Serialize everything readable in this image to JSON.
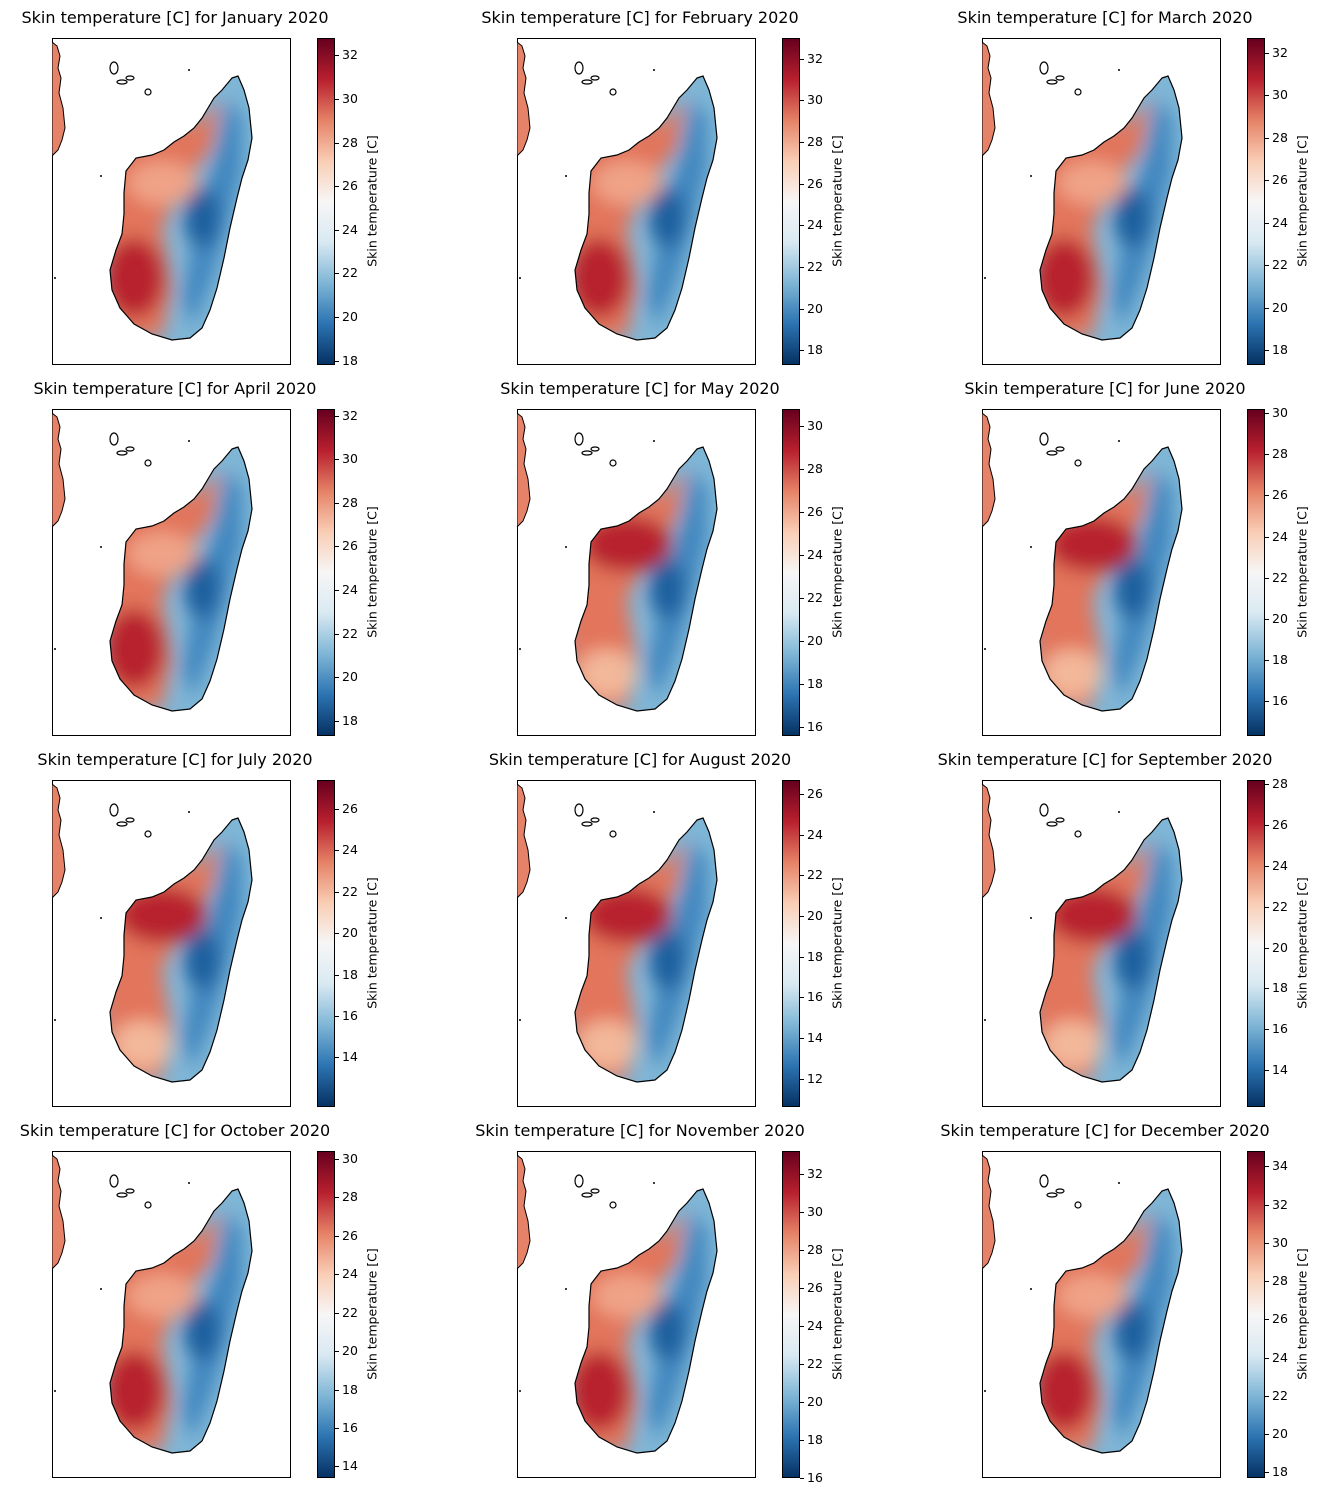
{
  "colormap": {
    "low": "#053061",
    "mid": "#f7f7f7",
    "high": "#67001f"
  },
  "colorbar_label": "Skin temperature [C]",
  "panels": [
    {
      "title": "Skin temperature [C] for January 2020",
      "ticks": [
        "18",
        "20",
        "22",
        "24",
        "26",
        "28",
        "30",
        "32"
      ],
      "vmin": 17.8,
      "vmax": 32.8,
      "hot": "w"
    },
    {
      "title": "Skin temperature [C] for February 2020",
      "ticks": [
        "18",
        "20",
        "22",
        "24",
        "26",
        "28",
        "30",
        "32"
      ],
      "vmin": 17.3,
      "vmax": 33.0,
      "hot": "w"
    },
    {
      "title": "Skin temperature [C] for March 2020",
      "ticks": [
        "18",
        "20",
        "22",
        "24",
        "26",
        "28",
        "30",
        "32"
      ],
      "vmin": 17.3,
      "vmax": 32.7,
      "hot": "w"
    },
    {
      "title": "Skin temperature [C] for April 2020",
      "ticks": [
        "18",
        "20",
        "22",
        "24",
        "26",
        "28",
        "30",
        "32"
      ],
      "vmin": 17.3,
      "vmax": 32.3,
      "hot": "w"
    },
    {
      "title": "Skin temperature [C] for May 2020",
      "ticks": [
        "16",
        "18",
        "20",
        "22",
        "24",
        "26",
        "28",
        "30"
      ],
      "vmin": 15.6,
      "vmax": 30.8,
      "hot": "nw"
    },
    {
      "title": "Skin temperature [C] for June 2020",
      "ticks": [
        "16",
        "18",
        "20",
        "22",
        "24",
        "26",
        "28",
        "30"
      ],
      "vmin": 14.3,
      "vmax": 30.2,
      "hot": "nw"
    },
    {
      "title": "Skin temperature [C] for July 2020",
      "ticks": [
        "14",
        "16",
        "18",
        "20",
        "22",
        "24",
        "26"
      ],
      "vmin": 11.6,
      "vmax": 27.4,
      "hot": "nw"
    },
    {
      "title": "Skin temperature [C] for August 2020",
      "ticks": [
        "12",
        "14",
        "16",
        "18",
        "20",
        "22",
        "24",
        "26"
      ],
      "vmin": 10.6,
      "vmax": 26.7,
      "hot": "nw"
    },
    {
      "title": "Skin temperature [C] for September 2020",
      "ticks": [
        "14",
        "16",
        "18",
        "20",
        "22",
        "24",
        "26",
        "28"
      ],
      "vmin": 12.2,
      "vmax": 28.2,
      "hot": "nw"
    },
    {
      "title": "Skin temperature [C] for October 2020",
      "ticks": [
        "14",
        "16",
        "18",
        "20",
        "22",
        "24",
        "26",
        "28",
        "30"
      ],
      "vmin": 13.4,
      "vmax": 30.4,
      "hot": "w"
    },
    {
      "title": "Skin temperature [C] for November 2020",
      "ticks": [
        "16",
        "18",
        "20",
        "22",
        "24",
        "26",
        "28",
        "30",
        "32"
      ],
      "vmin": 16.0,
      "vmax": 33.2,
      "hot": "w"
    },
    {
      "title": "Skin temperature [C] for December 2020",
      "ticks": [
        "18",
        "20",
        "22",
        "24",
        "26",
        "28",
        "30",
        "32",
        "34"
      ],
      "vmin": 17.7,
      "vmax": 34.8,
      "hot": "w"
    }
  ]
}
